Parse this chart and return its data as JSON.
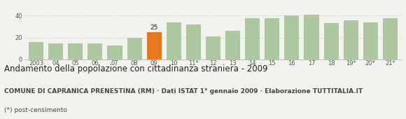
{
  "categories": [
    "2003",
    "04",
    "05",
    "06",
    "07",
    "08",
    "09",
    "10",
    "11*",
    "12",
    "13",
    "14",
    "15",
    "16",
    "17",
    "18",
    "19*",
    "20*",
    "21*"
  ],
  "values": [
    16,
    15,
    15,
    15,
    13,
    20,
    25,
    34,
    32,
    21,
    26,
    38,
    38,
    40,
    41,
    33,
    36,
    34,
    38
  ],
  "highlight_index": 6,
  "bar_color_normal": "#adc8a0",
  "bar_color_highlight": "#e87820",
  "highlight_label": "25",
  "ylim": [
    0,
    50
  ],
  "yticks": [
    0,
    20,
    40
  ],
  "grid_color": "#cccccc",
  "title": "Andamento della popolazione con cittadinanza straniera - 2009",
  "subtitle": "COMUNE DI CAPRANICA PRENESTINA (RM) · Dati ISTAT 1° gennaio 2009 · Elaborazione TUTTITALIA.IT",
  "footnote": "(*) post-censimento",
  "title_fontsize": 8.5,
  "subtitle_fontsize": 6.5,
  "footnote_fontsize": 6.5,
  "tick_fontsize": 6,
  "background_color": "#f2f2ee"
}
